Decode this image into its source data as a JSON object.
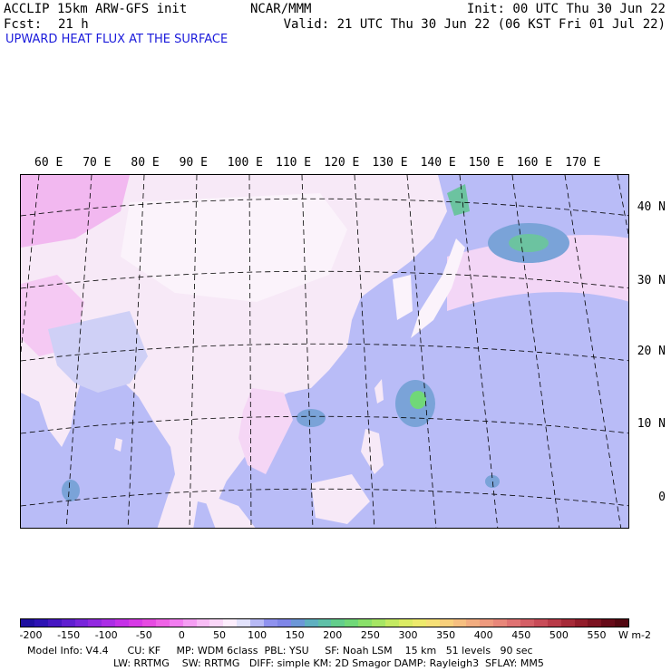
{
  "header": {
    "model": "ACCLIP 15km ARW-GFS init",
    "org": "NCAR/MMM",
    "init": "Init: 00 UTC Thu 30 Jun 22",
    "fcst_label": "Fcst:",
    "fcst_value": "21 h",
    "valid": "Valid: 21 UTC Thu 30 Jun 22 (06 KST Fri 01 Jul 22)",
    "field_title": "UPWARD HEAT FLUX AT THE SURFACE",
    "title_color": "#1a1adb"
  },
  "map": {
    "lon_labels": [
      "60 E",
      "70 E",
      "80 E",
      "90 E",
      "100 E",
      "110 E",
      "120 E",
      "130 E",
      "140 E",
      "150 E",
      "160 E",
      "170 E"
    ],
    "lat_labels": [
      "40 N",
      "30 N",
      "20 N",
      "10 N",
      "0"
    ]
  },
  "colorbar": {
    "ticks": [
      "-200",
      "-150",
      "-100",
      "-50",
      "0",
      "50",
      "100",
      "150",
      "200",
      "250",
      "300",
      "350",
      "400",
      "450",
      "500",
      "550"
    ],
    "units": "W m-2",
    "colors": [
      "#1e0fa0",
      "#2d13b4",
      "#4617c2",
      "#5f1fd0",
      "#7825da",
      "#9229e0",
      "#ab2ee6",
      "#c531e8",
      "#d73ae6",
      "#e64be2",
      "#ef63e6",
      "#f27df0",
      "#f59ef3",
      "#f8bdf5",
      "#fad7f8",
      "#fdeefd",
      "#e2e2fb",
      "#b7b9f5",
      "#8f92ef",
      "#7f86e8",
      "#6c97d8",
      "#5fb0c0",
      "#5fc0a8",
      "#63ce8c",
      "#70d878",
      "#8ae06a",
      "#a6e664",
      "#c4ea62",
      "#dcec64",
      "#eeea6c",
      "#f6e076",
      "#f8d07c",
      "#f6bf80",
      "#f2ad80",
      "#ee9a7e",
      "#e8877a",
      "#df7272",
      "#d45f66",
      "#c84c58",
      "#b83a48",
      "#a62a38",
      "#921c2a",
      "#7c1220",
      "#660a18",
      "#520610"
    ]
  },
  "footer": {
    "line1": "Model Info: V4.4      CU: KF     MP: WDM 6class  PBL: YSU     SF: Noah LSM    15 km   51 levels   90 sec",
    "line2": "LW: RRTMG    SW: RRTMG   DIFF: simple KM: 2D Smagor DAMP: Rayleigh3  SFLAY: MM5"
  }
}
